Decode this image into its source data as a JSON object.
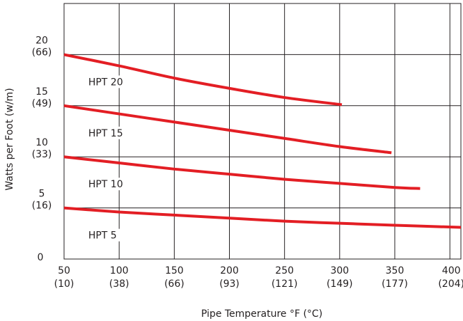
{
  "chart_data": {
    "type": "line",
    "xlabel": "Pipe Temperature °F (°C)",
    "ylabel": "Watts per Foot (w/m)",
    "xlim": [
      50,
      410
    ],
    "ylim": [
      0,
      25
    ],
    "grid": true,
    "legend": "inline labels",
    "line_color": "#e31e24",
    "x_ticks": [
      {
        "value": 50,
        "f": "50",
        "c": "(10)"
      },
      {
        "value": 100,
        "f": "100",
        "c": "(38)"
      },
      {
        "value": 150,
        "f": "150",
        "c": "(66)"
      },
      {
        "value": 200,
        "f": "200",
        "c": "(93)"
      },
      {
        "value": 250,
        "f": "250",
        "c": "(121)"
      },
      {
        "value": 300,
        "f": "300",
        "c": "(149)"
      },
      {
        "value": 350,
        "f": "350",
        "c": "(177)"
      },
      {
        "value": 400,
        "f": "400",
        "c": "(204)"
      }
    ],
    "y_ticks": [
      {
        "value": 0,
        "w": "0",
        "m": ""
      },
      {
        "value": 5,
        "w": "5",
        "m": "(16)"
      },
      {
        "value": 10,
        "w": "10",
        "m": "(33)"
      },
      {
        "value": 15,
        "w": "15",
        "m": "(49)"
      },
      {
        "value": 20,
        "w": "20",
        "m": "(66)"
      }
    ],
    "series": [
      {
        "name": "HPT 20",
        "x": [
          50,
          100,
          150,
          200,
          250,
          302
        ],
        "y": [
          20.0,
          18.9,
          17.7,
          16.7,
          15.8,
          15.1
        ]
      },
      {
        "name": "HPT 15",
        "x": [
          50,
          100,
          150,
          200,
          250,
          300,
          347
        ],
        "y": [
          15.0,
          14.2,
          13.4,
          12.6,
          11.8,
          11.0,
          10.4
        ]
      },
      {
        "name": "HPT 10",
        "x": [
          50,
          100,
          150,
          200,
          250,
          300,
          350,
          373
        ],
        "y": [
          10.0,
          9.4,
          8.8,
          8.3,
          7.8,
          7.4,
          7.0,
          6.9
        ]
      },
      {
        "name": "HPT 5",
        "x": [
          50,
          100,
          150,
          200,
          250,
          300,
          350,
          410
        ],
        "y": [
          5.0,
          4.6,
          4.3,
          4.0,
          3.7,
          3.5,
          3.3,
          3.1
        ]
      }
    ]
  }
}
